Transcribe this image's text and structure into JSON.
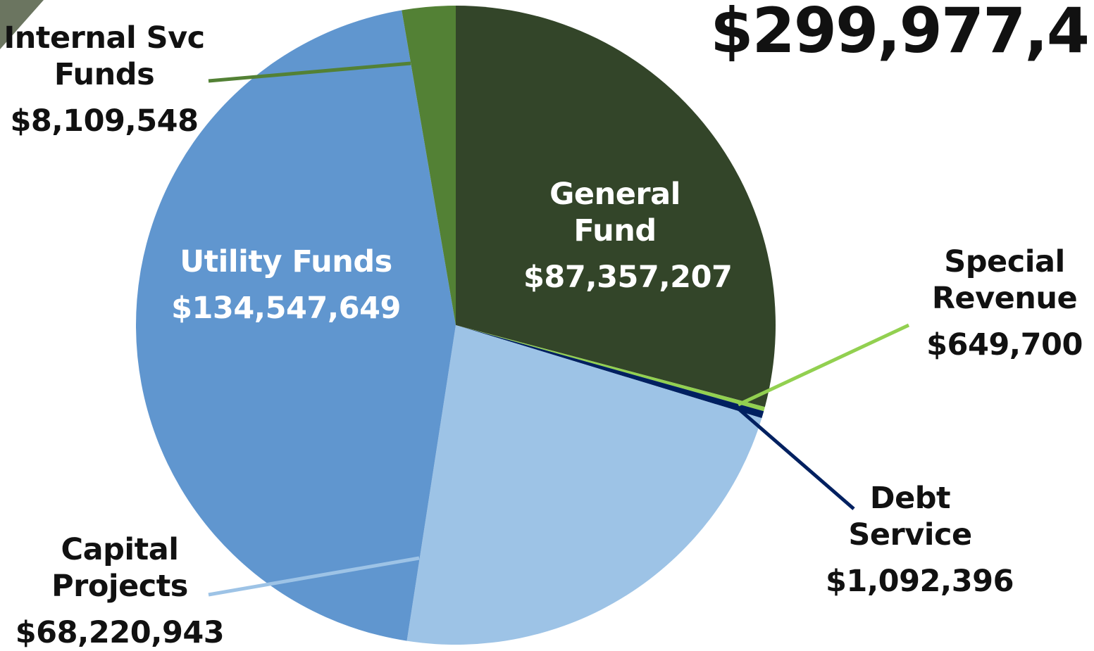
{
  "chart_data": {
    "type": "pie",
    "title": "$299,977,4",
    "categories": [
      "General Fund",
      "Special Revenue",
      "Debt Service",
      "Capital Projects",
      "Utility Funds",
      "Internal Svc Funds"
    ],
    "values": [
      87357207,
      649700,
      1092396,
      68220943,
      134547649,
      8109548
    ],
    "value_labels": [
      "$87,357,207",
      "$649,700",
      "$1,092,396",
      "$68,220,943",
      "$134,547,649",
      "$8,109,548"
    ],
    "colors": [
      "#334529",
      "#92d050",
      "#002060",
      "#9dc3e6",
      "#6096cf",
      "#538135"
    ]
  }
}
